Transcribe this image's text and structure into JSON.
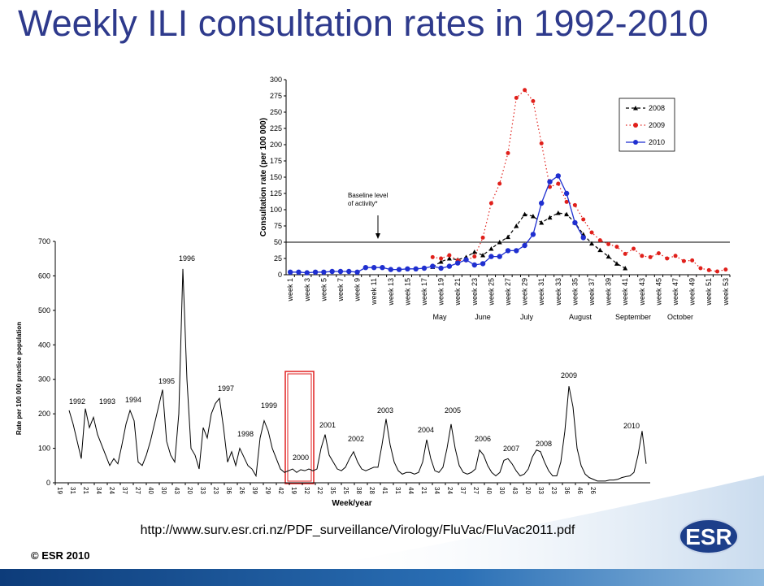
{
  "title": "Weekly ILI consultation rates in 1992-2010",
  "source": "http://www.surv.esr.cri.nz/PDF_surveillance/Virology/FluVac/FluVac2011.pdf",
  "copyright": "© ESR 2010",
  "logo": "ESR",
  "chart_data": [
    {
      "type": "line",
      "ylabel": "Consultation rate (per 100 000)",
      "categories": [
        "week 1",
        null,
        "week 3",
        null,
        "week 5",
        null,
        "week 7",
        null,
        "week 9",
        null,
        "week 11",
        null,
        "week 13",
        null,
        "week 15",
        null,
        "week 17",
        null,
        "week 19",
        null,
        "week 21",
        null,
        "week 23",
        null,
        "week 25",
        null,
        "week 27",
        null,
        "week 29",
        null,
        "week 31",
        null,
        "week 33",
        null,
        "week 35",
        null,
        "week 37",
        null,
        "week 39",
        null,
        "week 41",
        null,
        "week 43",
        null,
        "week 45",
        null,
        "week 47",
        null,
        "week 49",
        null,
        "week 51",
        null,
        "week 53"
      ],
      "months": [
        "May",
        "June",
        "July",
        "August",
        "September",
        "October"
      ],
      "ylim": [
        0,
        300
      ],
      "yticks": [
        0,
        25,
        50,
        75,
        100,
        125,
        150,
        175,
        200,
        225,
        250,
        275,
        300
      ],
      "baseline": 50,
      "baseline_label": [
        "Baseline level",
        "of activity*"
      ],
      "legend": "upper right",
      "series": [
        {
          "name": "2008",
          "color": "#000000",
          "style": "dashed",
          "marker": "triangle",
          "values": [
            null,
            null,
            null,
            null,
            null,
            null,
            null,
            null,
            null,
            null,
            null,
            null,
            null,
            null,
            null,
            null,
            null,
            12,
            20,
            25,
            23,
            27,
            35,
            30,
            40,
            50,
            58,
            75,
            93,
            90,
            80,
            88,
            95,
            93,
            80,
            62,
            48,
            38,
            28,
            17,
            10,
            null,
            null,
            null,
            null,
            null,
            null,
            null,
            null,
            null,
            null,
            null,
            null
          ]
        },
        {
          "name": "2009",
          "color": "#e0201b",
          "style": "dotted",
          "marker": "circle",
          "values": [
            null,
            null,
            null,
            null,
            null,
            null,
            null,
            null,
            null,
            null,
            null,
            null,
            null,
            null,
            null,
            null,
            null,
            27,
            25,
            30,
            22,
            22,
            28,
            57,
            110,
            140,
            187,
            272,
            284,
            267,
            202,
            135,
            140,
            112,
            107,
            85,
            65,
            53,
            47,
            43,
            32,
            40,
            29,
            27,
            33,
            25,
            29,
            21,
            22,
            10,
            7,
            5,
            8
          ]
        },
        {
          "name": "2010",
          "color": "#1f2fd0",
          "style": "solid",
          "marker": "circle",
          "values": [
            4,
            4,
            3,
            4,
            4,
            5,
            5,
            5,
            4,
            11,
            11,
            11,
            8,
            8,
            9,
            9,
            10,
            13,
            10,
            13,
            18,
            23,
            15,
            17,
            28,
            28,
            37,
            37,
            45,
            62,
            110,
            143,
            152,
            125,
            80,
            57,
            null,
            null,
            null,
            null,
            null,
            null,
            null,
            null,
            null,
            null,
            null,
            null,
            null,
            null,
            null,
            null,
            null
          ]
        }
      ]
    },
    {
      "type": "line",
      "ylabel": "Rate per 100 000 practice population",
      "xlabel": "Week/year",
      "color": "#000000",
      "xlim": [
        -3.4,
        143
      ],
      "xticks": [
        {
          "value": -3.4,
          "label": "19"
        },
        {
          "value": -0.2,
          "label": "31"
        },
        {
          "value": 3,
          "label": "21"
        },
        {
          "value": 6.2,
          "label": "34"
        },
        {
          "value": 9.4,
          "label": "24"
        },
        {
          "value": 12.6,
          "label": "37"
        },
        {
          "value": 15.8,
          "label": "27"
        },
        {
          "value": 19,
          "label": "40"
        },
        {
          "value": 22.2,
          "label": "30"
        },
        {
          "value": 25.4,
          "label": "43"
        },
        {
          "value": 28.6,
          "label": "20"
        },
        {
          "value": 31.8,
          "label": "33"
        },
        {
          "value": 35,
          "label": "23"
        },
        {
          "value": 38.2,
          "label": "36"
        },
        {
          "value": 41.4,
          "label": "26"
        },
        {
          "value": 44.6,
          "label": "39"
        },
        {
          "value": 47.8,
          "label": "29"
        },
        {
          "value": 51,
          "label": "42"
        },
        {
          "value": 54.2,
          "label": "19"
        },
        {
          "value": 57.4,
          "label": "32"
        },
        {
          "value": 60.6,
          "label": "22"
        },
        {
          "value": 63.8,
          "label": "35"
        },
        {
          "value": 67,
          "label": "25"
        },
        {
          "value": 70.2,
          "label": "38"
        },
        {
          "value": 73.4,
          "label": "28"
        },
        {
          "value": 76.6,
          "label": "41"
        },
        {
          "value": 79.8,
          "label": "31"
        },
        {
          "value": 83,
          "label": "44"
        },
        {
          "value": 86.2,
          "label": "21"
        },
        {
          "value": 89.4,
          "label": "34"
        },
        {
          "value": 92.6,
          "label": "24"
        },
        {
          "value": 95.8,
          "label": "37"
        },
        {
          "value": 99,
          "label": "27"
        },
        {
          "value": 102.2,
          "label": "40"
        },
        {
          "value": 105.4,
          "label": "30"
        },
        {
          "value": 108.6,
          "label": "43"
        },
        {
          "value": 111.8,
          "label": "20"
        },
        {
          "value": 115,
          "label": "33"
        },
        {
          "value": 118.2,
          "label": "23"
        },
        {
          "value": 121.4,
          "label": "36"
        },
        {
          "value": 124.6,
          "label": "46"
        },
        {
          "value": 127.8,
          "label": "26"
        }
      ],
      "ylim": [
        0,
        700
      ],
      "yticks": [
        0,
        100,
        200,
        300,
        400,
        500,
        600,
        700
      ],
      "annotations": [
        "1992",
        "1993",
        "1994",
        "1995",
        "1996",
        "1997",
        "1998",
        "1999",
        "2000",
        "2001",
        "2002",
        "2003",
        "2004",
        "2005",
        "2006",
        "2007",
        "2008",
        "2009",
        "2010"
      ],
      "values": [
        210,
        170,
        120,
        70,
        215,
        160,
        190,
        140,
        110,
        80,
        50,
        70,
        55,
        110,
        170,
        210,
        180,
        60,
        50,
        80,
        120,
        170,
        220,
        270,
        120,
        80,
        60,
        200,
        620,
        300,
        100,
        80,
        40,
        160,
        130,
        200,
        230,
        245,
        160,
        60,
        90,
        50,
        100,
        75,
        50,
        40,
        20,
        130,
        180,
        150,
        100,
        70,
        40,
        30,
        35,
        40,
        30,
        38,
        35,
        40,
        35,
        40,
        100,
        140,
        80,
        60,
        40,
        35,
        45,
        70,
        90,
        60,
        40,
        35,
        40,
        45,
        45,
        110,
        185,
        110,
        60,
        35,
        25,
        30,
        30,
        25,
        30,
        60,
        125,
        70,
        35,
        30,
        45,
        100,
        170,
        100,
        50,
        30,
        25,
        30,
        40,
        95,
        80,
        50,
        30,
        20,
        30,
        65,
        70,
        55,
        35,
        20,
        25,
        40,
        75,
        95,
        90,
        60,
        35,
        20,
        20,
        60,
        150,
        280,
        220,
        100,
        50,
        25,
        15,
        10,
        5,
        5,
        5,
        8,
        8,
        10,
        15,
        18,
        20,
        30,
        80,
        150,
        55
      ]
    }
  ]
}
